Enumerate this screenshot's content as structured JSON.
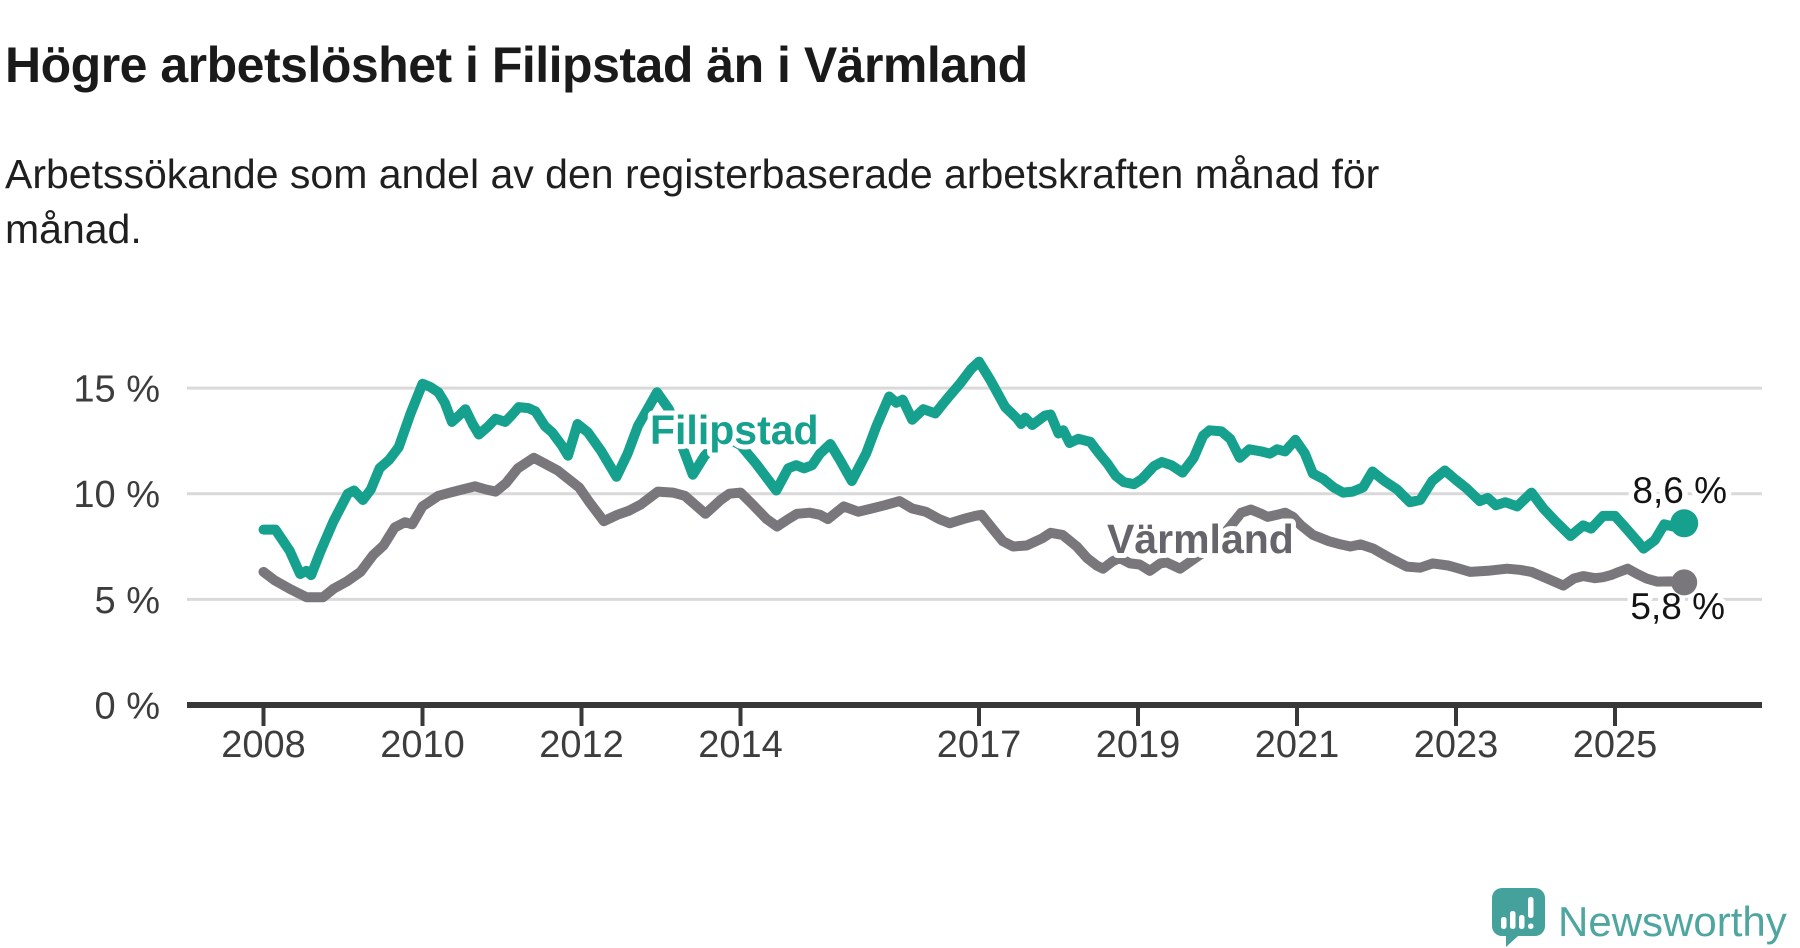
{
  "header": {
    "title": "Högre arbetslöshet i Filipstad än i Värmland",
    "subtitle": "Arbetssökande som andel av den registerbaserade arbetskraften månad för månad."
  },
  "logo": {
    "text": "Newsworthy",
    "icon": "newsworthy-speech-bubble-bar-chart-icon",
    "text_color": "#4FA6A0",
    "icon_color": "#45A19B"
  },
  "chart_data": {
    "type": "line",
    "title": "Högre arbetslöshet i Filipstad än i Värmland",
    "ylabel": "",
    "xlabel": "",
    "unit": "%",
    "grid": "horizontal-only",
    "legend_position": "inline-labels-on-lines",
    "ylim": [
      0,
      16.5
    ],
    "xlim_years": [
      2007.05,
      2026.85
    ],
    "y_axis": {
      "ticks": [
        {
          "value": 0,
          "label": "0 %"
        },
        {
          "value": 5,
          "label": "5 %"
        },
        {
          "value": 10,
          "label": "10 %"
        },
        {
          "value": 15,
          "label": "15 %"
        }
      ],
      "gridline_values": [
        5,
        10,
        15
      ]
    },
    "x_axis": {
      "ticks": [
        {
          "year": 2008,
          "label": "2008"
        },
        {
          "year": 2010,
          "label": "2010"
        },
        {
          "year": 2012,
          "label": "2012"
        },
        {
          "year": 2014,
          "label": "2014"
        },
        {
          "year": 2017,
          "label": "2017"
        },
        {
          "year": 2019,
          "label": "2019"
        },
        {
          "year": 2021,
          "label": "2021"
        },
        {
          "year": 2023,
          "label": "2023"
        },
        {
          "year": 2025,
          "label": "2025"
        }
      ]
    },
    "series": [
      {
        "name": "Filipstad",
        "color": "#16A08E",
        "label_color": "#16A08E",
        "end_label": "8,6 %",
        "end_value": 8.6,
        "points": [
          [
            2008.0,
            8.3
          ],
          [
            2008.15,
            8.3
          ],
          [
            2008.33,
            7.3
          ],
          [
            2008.46,
            6.2
          ],
          [
            2008.54,
            6.35
          ],
          [
            2008.6,
            6.15
          ],
          [
            2008.72,
            7.3
          ],
          [
            2008.88,
            8.7
          ],
          [
            2009.06,
            10.0
          ],
          [
            2009.14,
            10.15
          ],
          [
            2009.25,
            9.7
          ],
          [
            2009.35,
            10.2
          ],
          [
            2009.46,
            11.2
          ],
          [
            2009.58,
            11.6
          ],
          [
            2009.7,
            12.2
          ],
          [
            2009.85,
            13.8
          ],
          [
            2010.0,
            15.2
          ],
          [
            2010.1,
            15.05
          ],
          [
            2010.2,
            14.8
          ],
          [
            2010.28,
            14.3
          ],
          [
            2010.37,
            13.4
          ],
          [
            2010.46,
            13.7
          ],
          [
            2010.54,
            14.0
          ],
          [
            2010.63,
            13.3
          ],
          [
            2010.71,
            12.8
          ],
          [
            2010.83,
            13.2
          ],
          [
            2010.92,
            13.55
          ],
          [
            2011.04,
            13.4
          ],
          [
            2011.13,
            13.75
          ],
          [
            2011.21,
            14.1
          ],
          [
            2011.33,
            14.05
          ],
          [
            2011.42,
            13.9
          ],
          [
            2011.54,
            13.2
          ],
          [
            2011.63,
            12.9
          ],
          [
            2011.75,
            12.3
          ],
          [
            2011.83,
            11.8
          ],
          [
            2011.95,
            13.3
          ],
          [
            2012.08,
            12.9
          ],
          [
            2012.25,
            12.0
          ],
          [
            2012.44,
            10.8
          ],
          [
            2012.58,
            11.9
          ],
          [
            2012.71,
            13.2
          ],
          [
            2012.95,
            14.8
          ],
          [
            2013.1,
            14.0
          ],
          [
            2013.25,
            12.4
          ],
          [
            2013.4,
            10.9
          ],
          [
            2013.55,
            11.8
          ],
          [
            2013.7,
            12.4
          ],
          [
            2013.85,
            12.6
          ],
          [
            2014.0,
            12.3
          ],
          [
            2014.2,
            11.4
          ],
          [
            2014.45,
            10.15
          ],
          [
            2014.6,
            11.2
          ],
          [
            2014.7,
            11.35
          ],
          [
            2014.8,
            11.2
          ],
          [
            2014.9,
            11.35
          ],
          [
            2015.0,
            11.9
          ],
          [
            2015.13,
            12.35
          ],
          [
            2015.25,
            11.6
          ],
          [
            2015.4,
            10.6
          ],
          [
            2015.58,
            11.9
          ],
          [
            2015.71,
            13.2
          ],
          [
            2015.87,
            14.6
          ],
          [
            2015.96,
            14.3
          ],
          [
            2016.04,
            14.45
          ],
          [
            2016.16,
            13.5
          ],
          [
            2016.3,
            14.0
          ],
          [
            2016.45,
            13.8
          ],
          [
            2016.6,
            14.5
          ],
          [
            2016.76,
            15.2
          ],
          [
            2016.9,
            15.9
          ],
          [
            2017.0,
            16.25
          ],
          [
            2017.14,
            15.4
          ],
          [
            2017.33,
            14.1
          ],
          [
            2017.48,
            13.55
          ],
          [
            2017.53,
            13.3
          ],
          [
            2017.58,
            13.6
          ],
          [
            2017.67,
            13.25
          ],
          [
            2017.83,
            13.7
          ],
          [
            2017.9,
            13.75
          ],
          [
            2018.0,
            12.85
          ],
          [
            2018.06,
            13.0
          ],
          [
            2018.14,
            12.4
          ],
          [
            2018.25,
            12.6
          ],
          [
            2018.4,
            12.45
          ],
          [
            2018.5,
            11.95
          ],
          [
            2018.62,
            11.4
          ],
          [
            2018.72,
            10.85
          ],
          [
            2018.82,
            10.55
          ],
          [
            2018.95,
            10.45
          ],
          [
            2019.05,
            10.7
          ],
          [
            2019.2,
            11.3
          ],
          [
            2019.3,
            11.5
          ],
          [
            2019.42,
            11.35
          ],
          [
            2019.56,
            11.0
          ],
          [
            2019.7,
            11.7
          ],
          [
            2019.82,
            12.75
          ],
          [
            2019.9,
            13.0
          ],
          [
            2020.05,
            12.95
          ],
          [
            2020.16,
            12.6
          ],
          [
            2020.28,
            11.7
          ],
          [
            2020.4,
            12.1
          ],
          [
            2020.55,
            12.0
          ],
          [
            2020.66,
            11.9
          ],
          [
            2020.75,
            12.1
          ],
          [
            2020.85,
            12.0
          ],
          [
            2020.98,
            12.55
          ],
          [
            2021.1,
            11.9
          ],
          [
            2021.2,
            10.95
          ],
          [
            2021.33,
            10.7
          ],
          [
            2021.46,
            10.3
          ],
          [
            2021.58,
            10.05
          ],
          [
            2021.7,
            10.1
          ],
          [
            2021.83,
            10.3
          ],
          [
            2021.95,
            11.05
          ],
          [
            2022.1,
            10.6
          ],
          [
            2022.26,
            10.2
          ],
          [
            2022.42,
            9.6
          ],
          [
            2022.55,
            9.7
          ],
          [
            2022.7,
            10.6
          ],
          [
            2022.86,
            11.1
          ],
          [
            2023.0,
            10.65
          ],
          [
            2023.12,
            10.3
          ],
          [
            2023.3,
            9.65
          ],
          [
            2023.4,
            9.8
          ],
          [
            2023.5,
            9.45
          ],
          [
            2023.62,
            9.6
          ],
          [
            2023.77,
            9.4
          ],
          [
            2023.95,
            10.05
          ],
          [
            2024.1,
            9.3
          ],
          [
            2024.25,
            8.7
          ],
          [
            2024.44,
            8.0
          ],
          [
            2024.6,
            8.5
          ],
          [
            2024.7,
            8.35
          ],
          [
            2024.85,
            8.95
          ],
          [
            2025.0,
            8.95
          ],
          [
            2025.12,
            8.45
          ],
          [
            2025.28,
            7.75
          ],
          [
            2025.36,
            7.4
          ],
          [
            2025.5,
            7.8
          ],
          [
            2025.62,
            8.55
          ],
          [
            2025.73,
            8.45
          ],
          [
            2025.87,
            8.6
          ]
        ]
      },
      {
        "name": "Värmland",
        "color": "#7A777C",
        "label_color": "#67656C",
        "end_label": "5,8 %",
        "end_value": 5.8,
        "points": [
          [
            2008.0,
            6.3
          ],
          [
            2008.14,
            5.9
          ],
          [
            2008.33,
            5.5
          ],
          [
            2008.54,
            5.1
          ],
          [
            2008.75,
            5.1
          ],
          [
            2008.88,
            5.5
          ],
          [
            2009.05,
            5.85
          ],
          [
            2009.22,
            6.3
          ],
          [
            2009.38,
            7.1
          ],
          [
            2009.51,
            7.55
          ],
          [
            2009.65,
            8.4
          ],
          [
            2009.78,
            8.65
          ],
          [
            2009.87,
            8.55
          ],
          [
            2010.0,
            9.4
          ],
          [
            2010.2,
            9.9
          ],
          [
            2010.35,
            10.05
          ],
          [
            2010.5,
            10.2
          ],
          [
            2010.66,
            10.35
          ],
          [
            2010.8,
            10.2
          ],
          [
            2010.92,
            10.1
          ],
          [
            2011.05,
            10.5
          ],
          [
            2011.2,
            11.2
          ],
          [
            2011.4,
            11.7
          ],
          [
            2011.55,
            11.4
          ],
          [
            2011.7,
            11.1
          ],
          [
            2011.97,
            10.3
          ],
          [
            2012.1,
            9.6
          ],
          [
            2012.28,
            8.7
          ],
          [
            2012.45,
            9.0
          ],
          [
            2012.6,
            9.2
          ],
          [
            2012.75,
            9.5
          ],
          [
            2012.96,
            10.1
          ],
          [
            2013.15,
            10.05
          ],
          [
            2013.3,
            9.9
          ],
          [
            2013.56,
            9.05
          ],
          [
            2013.75,
            9.7
          ],
          [
            2013.86,
            10.0
          ],
          [
            2014.0,
            10.05
          ],
          [
            2014.15,
            9.5
          ],
          [
            2014.33,
            8.8
          ],
          [
            2014.46,
            8.45
          ],
          [
            2014.6,
            8.8
          ],
          [
            2014.71,
            9.05
          ],
          [
            2014.87,
            9.1
          ],
          [
            2015.0,
            9.0
          ],
          [
            2015.1,
            8.8
          ],
          [
            2015.3,
            9.4
          ],
          [
            2015.48,
            9.15
          ],
          [
            2015.65,
            9.3
          ],
          [
            2015.81,
            9.45
          ],
          [
            2016.0,
            9.65
          ],
          [
            2016.16,
            9.3
          ],
          [
            2016.33,
            9.15
          ],
          [
            2016.5,
            8.8
          ],
          [
            2016.63,
            8.6
          ],
          [
            2016.8,
            8.8
          ],
          [
            2016.95,
            8.95
          ],
          [
            2017.03,
            9.0
          ],
          [
            2017.18,
            8.3
          ],
          [
            2017.3,
            7.75
          ],
          [
            2017.43,
            7.5
          ],
          [
            2017.6,
            7.55
          ],
          [
            2017.8,
            7.9
          ],
          [
            2017.9,
            8.15
          ],
          [
            2018.05,
            8.05
          ],
          [
            2018.23,
            7.5
          ],
          [
            2018.36,
            6.95
          ],
          [
            2018.48,
            6.6
          ],
          [
            2018.56,
            6.45
          ],
          [
            2018.68,
            6.8
          ],
          [
            2018.77,
            6.95
          ],
          [
            2018.9,
            6.7
          ],
          [
            2019.02,
            6.65
          ],
          [
            2019.15,
            6.35
          ],
          [
            2019.28,
            6.7
          ],
          [
            2019.36,
            6.75
          ],
          [
            2019.53,
            6.45
          ],
          [
            2019.7,
            6.9
          ],
          [
            2019.85,
            7.3
          ],
          [
            2020.0,
            7.7
          ],
          [
            2020.15,
            8.4
          ],
          [
            2020.3,
            9.1
          ],
          [
            2020.42,
            9.25
          ],
          [
            2020.55,
            9.05
          ],
          [
            2020.63,
            8.9
          ],
          [
            2020.75,
            9.0
          ],
          [
            2020.85,
            9.1
          ],
          [
            2020.95,
            8.9
          ],
          [
            2021.05,
            8.5
          ],
          [
            2021.2,
            8.05
          ],
          [
            2021.4,
            7.75
          ],
          [
            2021.55,
            7.6
          ],
          [
            2021.67,
            7.5
          ],
          [
            2021.8,
            7.6
          ],
          [
            2021.96,
            7.4
          ],
          [
            2022.17,
            6.95
          ],
          [
            2022.38,
            6.55
          ],
          [
            2022.55,
            6.5
          ],
          [
            2022.71,
            6.7
          ],
          [
            2022.9,
            6.6
          ],
          [
            2023.0,
            6.5
          ],
          [
            2023.18,
            6.3
          ],
          [
            2023.4,
            6.35
          ],
          [
            2023.64,
            6.45
          ],
          [
            2023.8,
            6.4
          ],
          [
            2023.95,
            6.3
          ],
          [
            2024.15,
            5.98
          ],
          [
            2024.35,
            5.65
          ],
          [
            2024.48,
            5.98
          ],
          [
            2024.6,
            6.1
          ],
          [
            2024.75,
            6.0
          ],
          [
            2024.85,
            6.05
          ],
          [
            2024.95,
            6.15
          ],
          [
            2025.05,
            6.3
          ],
          [
            2025.16,
            6.45
          ],
          [
            2025.28,
            6.2
          ],
          [
            2025.4,
            5.98
          ],
          [
            2025.53,
            5.84
          ],
          [
            2025.7,
            5.85
          ],
          [
            2025.87,
            5.8
          ]
        ]
      }
    ]
  }
}
